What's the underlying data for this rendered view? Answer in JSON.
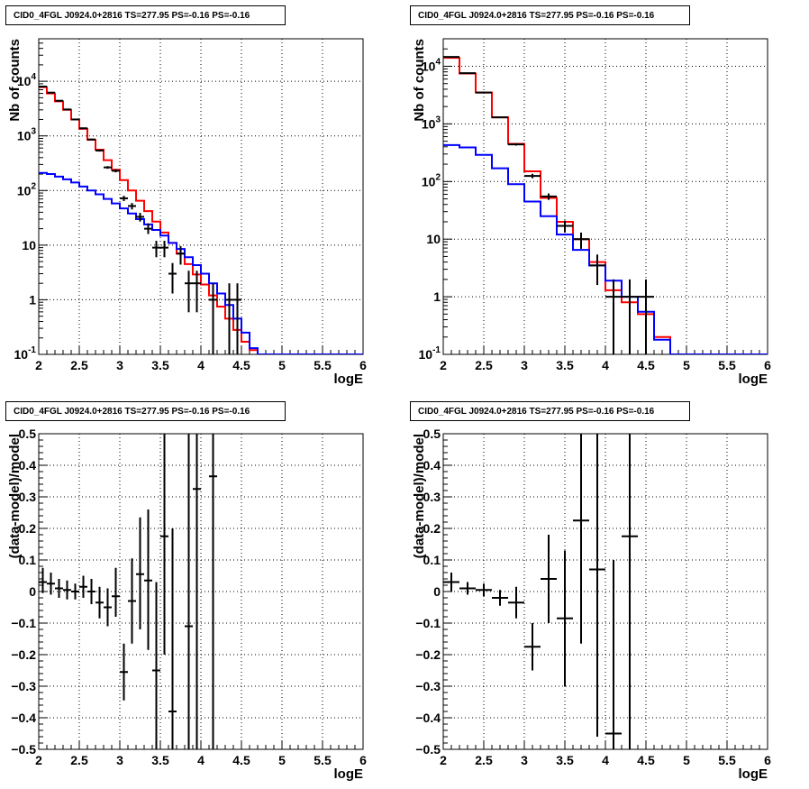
{
  "pads": [
    {
      "title": "CID0_4FGL J0924.0+2816 TS=277.95 PS=-0.16 PS=-0.16",
      "chart_data": {
        "type": "line",
        "xlabel": "logE",
        "ylabel": "Nb of counts",
        "xlim": [
          2,
          6
        ],
        "ylim": [
          0.1,
          60000
        ],
        "ylog": true,
        "grid": true,
        "xticks": [
          "2",
          "2.5",
          "3",
          "3.5",
          "4",
          "4.5",
          "5",
          "5.5",
          "6"
        ],
        "yticks": [
          {
            "v": 0.1,
            "label": "10^{-1}"
          },
          {
            "v": 1,
            "label": "1"
          },
          {
            "v": 10,
            "label": "10"
          },
          {
            "v": 100,
            "label": "10^{2}"
          },
          {
            "v": 1000,
            "label": "10^{3}"
          },
          {
            "v": 10000,
            "label": "10^{4}"
          }
        ],
        "bin_edges": [
          2.0,
          2.1,
          2.2,
          2.3,
          2.4,
          2.5,
          2.6,
          2.7,
          2.8,
          2.9,
          3.0,
          3.1,
          3.2,
          3.3,
          3.4,
          3.5,
          3.6,
          3.7,
          3.8,
          3.9,
          4.0,
          4.1,
          4.2,
          4.3,
          4.4,
          4.5,
          4.6,
          4.7,
          4.8,
          4.9,
          5.0,
          5.1,
          5.2,
          5.3,
          5.4,
          5.5,
          5.6,
          5.7,
          5.8,
          5.9,
          6.0
        ],
        "series": [
          {
            "color": "#ff0000",
            "style": "hist",
            "values": [
              7800,
              6000,
              4300,
              3000,
              2000,
              1350,
              850,
              560,
              360,
              240,
              155,
              100,
              65,
              42,
              27,
              17,
              11,
              7,
              4.5,
              2.9,
              1.9,
              1.2,
              0.75,
              0.45,
              0.28,
              0.17,
              0.12,
              0.1,
              0.1,
              0.1,
              0.1,
              0.1,
              0.1,
              0.1,
              0.1,
              0.1,
              0.1,
              0.1,
              0.1,
              0.1
            ]
          },
          {
            "color": "#0000ff",
            "style": "hist",
            "values": [
              210,
              200,
              180,
              160,
              140,
              118,
              100,
              85,
              70,
              58,
              47,
              38,
              30,
              24,
              19,
              15,
              11,
              8.5,
              6,
              4.3,
              3,
              2,
              1.3,
              0.8,
              0.45,
              0.25,
              0.13,
              0.1,
              0.1,
              0.1,
              0.1,
              0.1,
              0.1,
              0.1,
              0.1,
              0.1,
              0.1,
              0.1,
              0.1,
              0.1
            ]
          },
          {
            "color": "#000000",
            "style": "points",
            "points": [
              {
                "x": 2.05,
                "y": 8000,
                "lo": 7900,
                "hi": 8100
              },
              {
                "x": 2.15,
                "y": 6200,
                "lo": 6100,
                "hi": 6300
              },
              {
                "x": 2.25,
                "y": 4400,
                "lo": 4300,
                "hi": 4500
              },
              {
                "x": 2.35,
                "y": 3050,
                "lo": 2950,
                "hi": 3150
              },
              {
                "x": 2.45,
                "y": 2000,
                "lo": 1950,
                "hi": 2050
              },
              {
                "x": 2.55,
                "y": 1380,
                "lo": 1340,
                "hi": 1420
              },
              {
                "x": 2.65,
                "y": 860,
                "lo": 830,
                "hi": 890
              },
              {
                "x": 2.75,
                "y": 540,
                "lo": 515,
                "hi": 565
              },
              {
                "x": 2.85,
                "y": 265,
                "lo": 250,
                "hi": 280
              },
              {
                "x": 2.95,
                "y": 230,
                "lo": 215,
                "hi": 245
              },
              {
                "x": 3.05,
                "y": 72,
                "lo": 64,
                "hi": 80
              },
              {
                "x": 3.15,
                "y": 52,
                "lo": 45,
                "hi": 59
              },
              {
                "x": 3.25,
                "y": 33,
                "lo": 27,
                "hi": 39
              },
              {
                "x": 3.35,
                "y": 20,
                "lo": 16,
                "hi": 25
              },
              {
                "x": 3.45,
                "y": 9,
                "lo": 6,
                "hi": 12
              },
              {
                "x": 3.55,
                "y": 9,
                "lo": 6,
                "hi": 12
              },
              {
                "x": 3.65,
                "y": 3,
                "lo": 1.3,
                "hi": 4.7
              },
              {
                "x": 3.75,
                "y": 7,
                "lo": 4.4,
                "hi": 9.6
              },
              {
                "x": 3.85,
                "y": 2,
                "lo": 0.59,
                "hi": 3.4
              },
              {
                "x": 3.95,
                "y": 2,
                "lo": 0.59,
                "hi": 3.4
              },
              {
                "x": 4.15,
                "y": 1,
                "lo": 0.1,
                "hi": 2
              },
              {
                "x": 4.35,
                "y": 1,
                "lo": 0.1,
                "hi": 2
              },
              {
                "x": 4.45,
                "y": 1,
                "lo": 0.1,
                "hi": 2
              }
            ]
          }
        ]
      }
    },
    {
      "title": "CID0_4FGL J0924.0+2816 TS=277.95 PS=-0.16 PS=-0.16",
      "chart_data": {
        "type": "line",
        "xlabel": "logE",
        "ylabel": "Nb of counts",
        "xlim": [
          2,
          6
        ],
        "ylim": [
          0.1,
          30000
        ],
        "ylog": true,
        "grid": true,
        "xticks": [
          "2",
          "2.5",
          "3",
          "3.5",
          "4",
          "4.5",
          "5",
          "5.5",
          "6"
        ],
        "yticks": [
          {
            "v": 0.1,
            "label": "10^{-1}"
          },
          {
            "v": 1,
            "label": "1"
          },
          {
            "v": 10,
            "label": "10"
          },
          {
            "v": 100,
            "label": "10^{2}"
          },
          {
            "v": 1000,
            "label": "10^{3}"
          },
          {
            "v": 10000,
            "label": "10^{4}"
          }
        ],
        "bin_edges": [
          2.0,
          2.2,
          2.4,
          2.6,
          2.8,
          3.0,
          3.2,
          3.4,
          3.6,
          3.8,
          4.0,
          4.2,
          4.4,
          4.6,
          4.8,
          5.0,
          5.2,
          5.4,
          5.6,
          5.8,
          6.0
        ],
        "series": [
          {
            "color": "#ff0000",
            "style": "hist",
            "values": [
              14000,
              7500,
              3500,
              1300,
              450,
              150,
              52,
              20,
              10,
              4,
              1.3,
              0.8,
              0.5,
              0.2,
              0.1,
              0.1,
              0.1,
              0.1,
              0.1,
              0.1
            ]
          },
          {
            "color": "#0000ff",
            "style": "hist",
            "values": [
              430,
              390,
              290,
              170,
              90,
              45,
              25,
              12,
              6.5,
              3.5,
              1.9,
              1,
              0.55,
              0.18,
              0.1,
              0.1,
              0.1,
              0.1,
              0.1,
              0.1
            ]
          },
          {
            "color": "#000000",
            "style": "points",
            "points": [
              {
                "x": 2.1,
                "y": 14500,
                "lo": 14300,
                "hi": 14700
              },
              {
                "x": 2.3,
                "y": 7600,
                "lo": 7450,
                "hi": 7750
              },
              {
                "x": 2.5,
                "y": 3500,
                "lo": 3440,
                "hi": 3560
              },
              {
                "x": 2.7,
                "y": 1300,
                "lo": 1265,
                "hi": 1335
              },
              {
                "x": 2.9,
                "y": 440,
                "lo": 420,
                "hi": 460
              },
              {
                "x": 3.1,
                "y": 125,
                "lo": 114,
                "hi": 136
              },
              {
                "x": 3.3,
                "y": 55,
                "lo": 48,
                "hi": 62
              },
              {
                "x": 3.5,
                "y": 17,
                "lo": 13,
                "hi": 21
              },
              {
                "x": 3.7,
                "y": 10,
                "lo": 6.8,
                "hi": 13
              },
              {
                "x": 3.9,
                "y": 3.5,
                "lo": 1.6,
                "hi": 5.4
              },
              {
                "x": 4.1,
                "y": 1,
                "lo": 0.1,
                "hi": 2
              },
              {
                "x": 4.3,
                "y": 1,
                "lo": 0.1,
                "hi": 2
              },
              {
                "x": 4.5,
                "y": 1,
                "lo": 0.1,
                "hi": 2
              }
            ]
          }
        ]
      }
    },
    {
      "title": "CID0_4FGL J0924.0+2816 TS=277.95 PS=-0.16 PS=-0.16",
      "chart_data": {
        "type": "scatter",
        "xlabel": "logE",
        "ylabel": "(data-model)/model",
        "xlim": [
          2,
          6
        ],
        "ylim": [
          -0.5,
          0.5
        ],
        "ylog": false,
        "grid": true,
        "xticks": [
          "2",
          "2.5",
          "3",
          "3.5",
          "4",
          "4.5",
          "5",
          "5.5",
          "6"
        ],
        "yticks": [
          {
            "v": -0.5,
            "label": "−0.5"
          },
          {
            "v": -0.4,
            "label": "−0.4"
          },
          {
            "v": -0.3,
            "label": "−0.3"
          },
          {
            "v": -0.2,
            "label": "−0.2"
          },
          {
            "v": -0.1,
            "label": "−0.1"
          },
          {
            "v": 0,
            "label": "0"
          },
          {
            "v": 0.1,
            "label": "0.1"
          },
          {
            "v": 0.2,
            "label": "0.2"
          },
          {
            "v": 0.3,
            "label": "0.3"
          },
          {
            "v": 0.4,
            "label": "0.4"
          },
          {
            "v": 0.5,
            "label": "0.5"
          }
        ],
        "series": [
          {
            "color": "#000000",
            "style": "points",
            "halfwidth": 0.05,
            "points": [
              {
                "x": 2.05,
                "y": 0.03,
                "lo": -0.005,
                "hi": 0.075
              },
              {
                "x": 2.15,
                "y": 0.025,
                "lo": -0.01,
                "hi": 0.06
              },
              {
                "x": 2.25,
                "y": 0.01,
                "lo": -0.02,
                "hi": 0.04
              },
              {
                "x": 2.35,
                "y": 0.005,
                "lo": -0.025,
                "hi": 0.035
              },
              {
                "x": 2.45,
                "y": 0,
                "lo": -0.025,
                "hi": 0.025
              },
              {
                "x": 2.55,
                "y": 0.015,
                "lo": -0.02,
                "hi": 0.05
              },
              {
                "x": 2.65,
                "y": 0.0,
                "lo": -0.04,
                "hi": 0.04
              },
              {
                "x": 2.75,
                "y": -0.035,
                "lo": -0.085,
                "hi": 0.015
              },
              {
                "x": 2.85,
                "y": -0.05,
                "lo": -0.11,
                "hi": 0.01
              },
              {
                "x": 2.95,
                "y": -0.015,
                "lo": -0.08,
                "hi": 0.075
              },
              {
                "x": 3.05,
                "y": -0.255,
                "lo": -0.345,
                "hi": -0.165
              },
              {
                "x": 3.15,
                "y": -0.03,
                "lo": -0.165,
                "hi": 0.105
              },
              {
                "x": 3.25,
                "y": 0.055,
                "lo": -0.12,
                "hi": 0.235
              },
              {
                "x": 3.35,
                "y": 0.035,
                "lo": -0.185,
                "hi": 0.26
              },
              {
                "x": 3.45,
                "y": -0.25,
                "lo": -0.5,
                "hi": 0.03
              },
              {
                "x": 3.55,
                "y": 0.175,
                "lo": -0.2,
                "hi": 0.5
              },
              {
                "x": 3.65,
                "y": -0.38,
                "lo": -0.5,
                "hi": 0.2
              },
              {
                "x": 3.85,
                "y": -0.11,
                "lo": -0.5,
                "hi": 0.5
              },
              {
                "x": 3.95,
                "y": 0.325,
                "lo": -0.5,
                "hi": 0.5
              },
              {
                "x": 4.15,
                "y": 0.365,
                "lo": -0.5,
                "hi": 0.5
              }
            ]
          }
        ]
      }
    },
    {
      "title": "CID0_4FGL J0924.0+2816 TS=277.95 PS=-0.16 PS=-0.16",
      "chart_data": {
        "type": "scatter",
        "xlabel": "logE",
        "ylabel": "(data-model)/model",
        "xlim": [
          2,
          6
        ],
        "ylim": [
          -0.5,
          0.5
        ],
        "ylog": false,
        "grid": true,
        "xticks": [
          "2",
          "2.5",
          "3",
          "3.5",
          "4",
          "4.5",
          "5",
          "5.5",
          "6"
        ],
        "yticks": [
          {
            "v": -0.5,
            "label": "−0.5"
          },
          {
            "v": -0.4,
            "label": "−0.4"
          },
          {
            "v": -0.3,
            "label": "−0.3"
          },
          {
            "v": -0.2,
            "label": "−0.2"
          },
          {
            "v": -0.1,
            "label": "−0.1"
          },
          {
            "v": 0,
            "label": "0"
          },
          {
            "v": 0.1,
            "label": "0.1"
          },
          {
            "v": 0.2,
            "label": "0.2"
          },
          {
            "v": 0.3,
            "label": "0.3"
          },
          {
            "v": 0.4,
            "label": "0.4"
          },
          {
            "v": 0.5,
            "label": "0.5"
          }
        ],
        "series": [
          {
            "color": "#000000",
            "style": "points",
            "halfwidth": 0.1,
            "points": [
              {
                "x": 2.1,
                "y": 0.03,
                "lo": 0.0,
                "hi": 0.06
              },
              {
                "x": 2.3,
                "y": 0.01,
                "lo": -0.01,
                "hi": 0.03
              },
              {
                "x": 2.5,
                "y": 0.005,
                "lo": -0.015,
                "hi": 0.025
              },
              {
                "x": 2.7,
                "y": -0.02,
                "lo": -0.045,
                "hi": 0.005
              },
              {
                "x": 2.9,
                "y": -0.035,
                "lo": -0.085,
                "hi": 0.015
              },
              {
                "x": 3.1,
                "y": -0.175,
                "lo": -0.25,
                "hi": -0.1
              },
              {
                "x": 3.3,
                "y": 0.04,
                "lo": -0.1,
                "hi": 0.18
              },
              {
                "x": 3.5,
                "y": -0.085,
                "lo": -0.3,
                "hi": 0.13
              },
              {
                "x": 3.7,
                "y": 0.225,
                "lo": -0.165,
                "hi": 0.5
              },
              {
                "x": 3.9,
                "y": 0.07,
                "lo": -0.46,
                "hi": 0.5
              },
              {
                "x": 4.1,
                "y": -0.45,
                "lo": -0.5,
                "hi": 0.1
              },
              {
                "x": 4.3,
                "y": 0.175,
                "lo": -0.5,
                "hi": 0.5
              }
            ]
          }
        ]
      }
    }
  ]
}
